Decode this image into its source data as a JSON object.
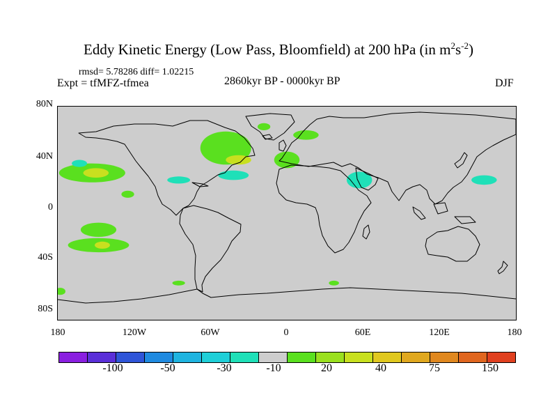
{
  "title": {
    "main": "Eddy Kinetic Energy (Low Pass, Bloomfield) at 200 hPa (in m",
    "sup1": "2",
    "mid": "s",
    "sup2": "-2",
    "end": ")"
  },
  "stats": "rmsd= 5.78286 diff= 1.02215",
  "experiment": "Expt = tfMFZ-tfmea",
  "period": "2860kyr BP - 0000kyr BP",
  "season": "DJF",
  "lat_labels": [
    "80N",
    "40N",
    "0",
    "40S",
    "80S"
  ],
  "lon_labels": [
    "180",
    "120W",
    "60W",
    "0",
    "60E",
    "120E",
    "180"
  ],
  "colorbar": {
    "colors": [
      "#8a1fe0",
      "#5a2fd8",
      "#2f55d8",
      "#1f8ae0",
      "#1fb4e0",
      "#1fcfd8",
      "#1fe0b8",
      "#cdcdcd",
      "#5ae01f",
      "#9ae01f",
      "#c8e01f",
      "#e0c81f",
      "#e0a81f",
      "#e0881f",
      "#e0661f",
      "#e0401f"
    ],
    "labels": [
      "-100",
      "-50",
      "-30",
      "-10",
      "20",
      "40",
      "75",
      "150"
    ]
  },
  "map": {
    "background": "#cdcdcd",
    "anomalies": [
      {
        "region": "central-pacific-north",
        "lon": -153,
        "lat": 34,
        "rlon": 26,
        "rlat": 8,
        "color": "#5ae01f"
      },
      {
        "region": "central-pacific-north-core",
        "lon": -150,
        "lat": 34,
        "rlon": 10,
        "rlat": 4,
        "color": "#c8e01f"
      },
      {
        "region": "north-pacific-west",
        "lon": -163,
        "lat": 42,
        "rlon": 6,
        "rlat": 3,
        "color": "#1fe0b8"
      },
      {
        "region": "south-pacific-a",
        "lon": -148,
        "lat": -14,
        "rlon": 14,
        "rlat": 6,
        "color": "#5ae01f"
      },
      {
        "region": "south-pacific-b",
        "lon": -148,
        "lat": -27,
        "rlon": 24,
        "rlat": 6,
        "color": "#5ae01f"
      },
      {
        "region": "south-pacific-b-core",
        "lon": -145,
        "lat": -27,
        "rlon": 6,
        "rlat": 3,
        "color": "#c8e01f"
      },
      {
        "region": "south-pacific-c",
        "lon": -178,
        "lat": -66,
        "rlon": 4,
        "rlat": 3,
        "color": "#5ae01f"
      },
      {
        "region": "eastern-pacific-subtropics",
        "lon": -125,
        "lat": 16,
        "rlon": 5,
        "rlat": 3,
        "color": "#5ae01f"
      },
      {
        "region": "north-atlantic",
        "lon": -48,
        "lat": 55,
        "rlon": 20,
        "rlat": 14,
        "color": "#5ae01f"
      },
      {
        "region": "north-atlantic-core",
        "lon": -38,
        "lat": 45,
        "rlon": 10,
        "rlat": 4,
        "color": "#c8e01f"
      },
      {
        "region": "atlantic-subtropics",
        "lon": -42,
        "lat": 32,
        "rlon": 12,
        "rlat": 4,
        "color": "#1fe0b8"
      },
      {
        "region": "iberia",
        "lon": 0,
        "lat": 45,
        "rlon": 10,
        "rlat": 7,
        "color": "#5ae01f"
      },
      {
        "region": "scandinavia",
        "lon": 15,
        "lat": 66,
        "rlon": 10,
        "rlat": 4,
        "color": "#5ae01f"
      },
      {
        "region": "arctic-atlantic",
        "lon": -18,
        "lat": 73,
        "rlon": 5,
        "rlat": 3,
        "color": "#5ae01f"
      },
      {
        "region": "gulf-of-mexico",
        "lon": -85,
        "lat": 28,
        "rlon": 9,
        "rlat": 3,
        "color": "#1fe0b8"
      },
      {
        "region": "arabia-india",
        "lon": 57,
        "lat": 28,
        "rlon": 10,
        "rlat": 7,
        "color": "#1fe0b8"
      },
      {
        "region": "east-asia-east",
        "lon": 155,
        "lat": 28,
        "rlon": 10,
        "rlat": 4,
        "color": "#1fe0b8"
      },
      {
        "region": "southern-ocean-atlantic",
        "lon": -85,
        "lat": -59,
        "rlon": 5,
        "rlat": 2,
        "color": "#5ae01f"
      },
      {
        "region": "southern-ocean-indian",
        "lon": 37,
        "lat": -59,
        "rlon": 4,
        "rlat": 2,
        "color": "#5ae01f"
      }
    ]
  }
}
